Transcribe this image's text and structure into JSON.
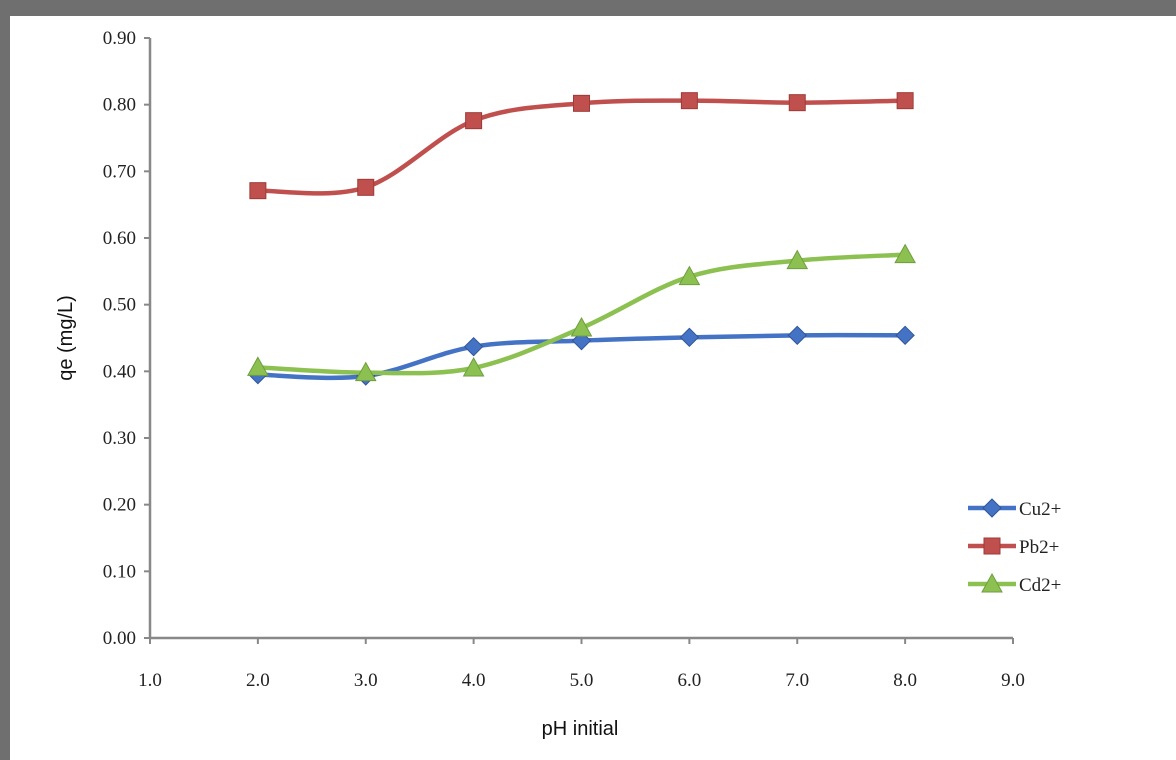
{
  "chart_data": {
    "type": "line",
    "title": "",
    "xlabel": "pH initial",
    "ylabel": "qe (mg/L)",
    "xlim": [
      1.0,
      9.0
    ],
    "ylim": [
      0.0,
      0.9
    ],
    "x_ticks": [
      "1.0",
      "2.0",
      "3.0",
      "4.0",
      "5.0",
      "6.0",
      "7.0",
      "8.0",
      "9.0"
    ],
    "y_ticks": [
      "0.00",
      "0.10",
      "0.20",
      "0.30",
      "0.40",
      "0.50",
      "0.60",
      "0.70",
      "0.80",
      "0.90"
    ],
    "grid": false,
    "legend_position": "right",
    "x": [
      2.0,
      3.0,
      4.0,
      5.0,
      6.0,
      7.0,
      8.0
    ],
    "series": [
      {
        "name": "Cu2+",
        "marker": "diamond",
        "color": "#4472c4",
        "values": [
          0.395,
          0.393,
          0.437,
          0.446,
          0.451,
          0.454,
          0.454
        ]
      },
      {
        "name": "Pb2+",
        "marker": "square",
        "color": "#c0504d",
        "values": [
          0.671,
          0.676,
          0.776,
          0.802,
          0.806,
          0.803,
          0.806
        ]
      },
      {
        "name": "Cd2+",
        "marker": "triangle",
        "color": "#8cc152",
        "values": [
          0.406,
          0.398,
          0.405,
          0.465,
          0.542,
          0.566,
          0.575
        ]
      }
    ]
  }
}
